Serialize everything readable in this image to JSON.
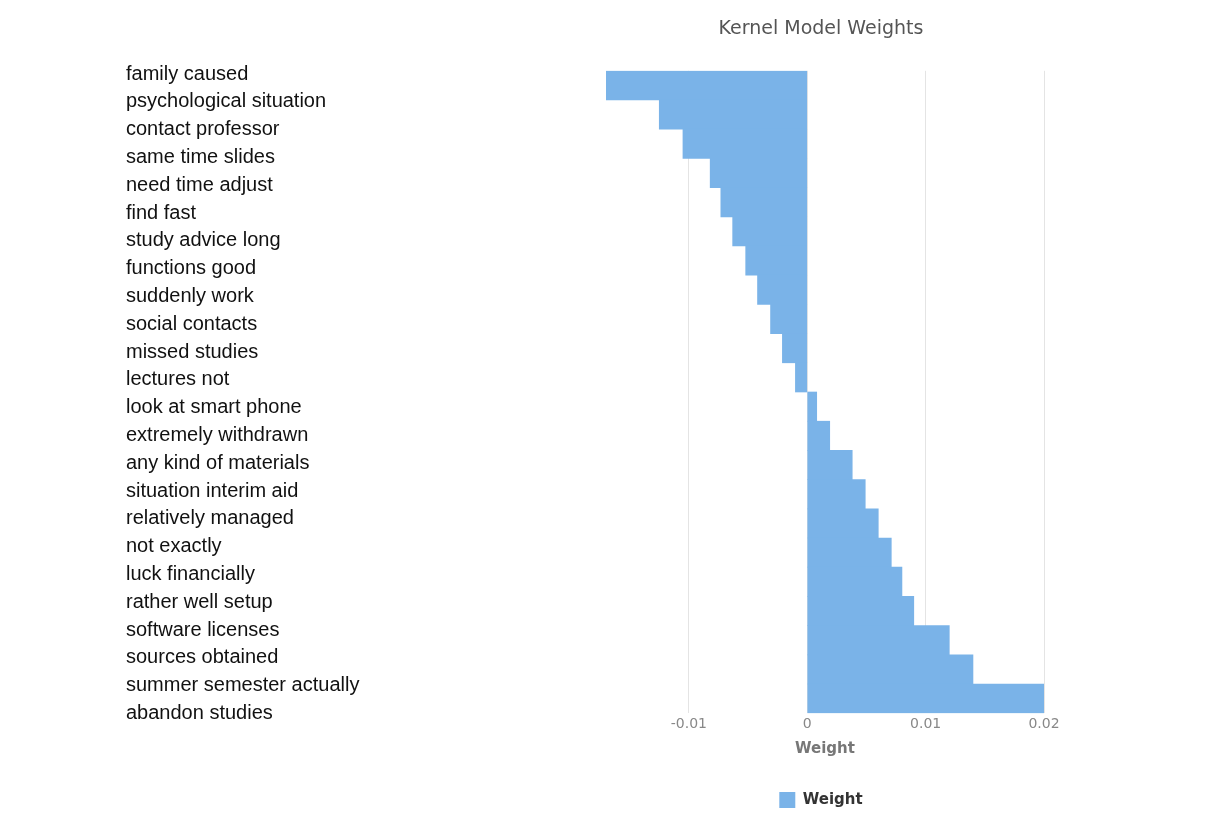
{
  "chart_data": {
    "type": "bar",
    "orientation": "horizontal",
    "title": "Kernel Model Weights",
    "xlabel": "Weight",
    "legend": "bottom",
    "grid": "x",
    "xlim": [
      -0.017,
      0.02
    ],
    "xticks": [
      -0.01,
      0,
      0.01,
      0.02
    ],
    "annotations": [
      "family caused",
      "psychological situation",
      "contact professor",
      "same time slides",
      "need time adjust",
      "find fast",
      "study advice long",
      "functions good",
      "suddenly work",
      "social contacts",
      "missed studies",
      "lectures not",
      "look at smart phone",
      "extremely withdrawn",
      "any kind of materials",
      "situation interim aid",
      "relatively managed",
      "not exactly",
      "luck financially",
      "rather well setup",
      "software licenses",
      "sources obtained",
      "summer semester actually",
      "abandon studies"
    ],
    "categories": [
      null,
      null,
      null,
      null,
      null,
      null,
      null,
      null,
      null,
      null,
      null,
      null,
      null,
      null,
      null,
      null,
      null,
      null,
      null,
      null,
      null,
      null
    ],
    "series": [
      {
        "name": "Weight",
        "color": "#7ab3e8",
        "values": [
          -0.017,
          -0.0125,
          -0.0105,
          -0.0082,
          -0.0073,
          -0.0063,
          -0.0052,
          -0.0042,
          -0.0031,
          -0.0021,
          -0.001,
          0.0008,
          0.0019,
          0.0038,
          0.0049,
          0.006,
          0.0071,
          0.008,
          0.009,
          0.012,
          0.014,
          0.02
        ]
      }
    ]
  }
}
